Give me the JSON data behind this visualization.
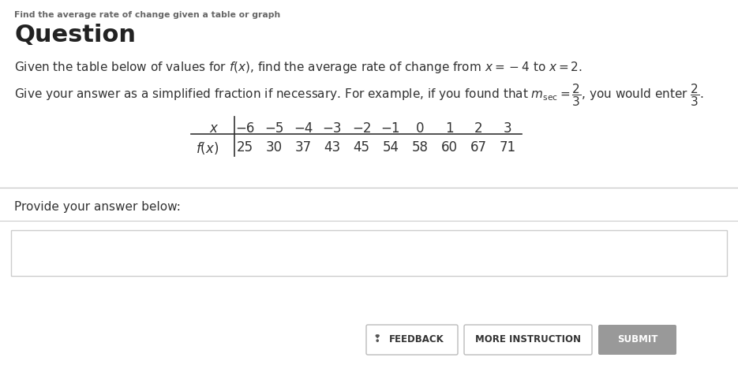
{
  "bg_color": "#ffffff",
  "header_text": "Find the average rate of change given a table or graph",
  "title_text": "Question",
  "x_values": [
    "−6",
    "−5",
    "−4",
    "−3",
    "−2",
    "−1",
    "0",
    "1",
    "2",
    "3"
  ],
  "fx_values": [
    "25",
    "30",
    "37",
    "43",
    "45",
    "54",
    "58",
    "60",
    "67",
    "71"
  ],
  "provide_text": "Provide your answer below:",
  "button_feedback": "FEEDBACK",
  "button_instruction": "MORE INSTRUCTION",
  "button_submit": "SUBMIT",
  "separator_color": "#cccccc",
  "input_box_border": "#cccccc",
  "button_feedback_bg": "#ffffff",
  "button_feedback_border": "#bbbbbb",
  "button_instruction_bg": "#ffffff",
  "button_instruction_border": "#bbbbbb",
  "button_submit_bg": "#999999",
  "button_submit_fg": "#ffffff",
  "header_color": "#666666",
  "title_color": "#222222",
  "body_color": "#333333",
  "table_color": "#333333",
  "fig_width": 9.35,
  "fig_height": 4.63,
  "dpi": 100
}
